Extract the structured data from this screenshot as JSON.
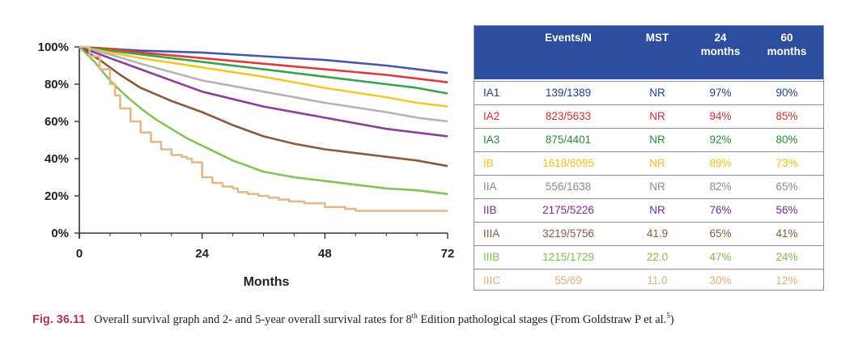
{
  "chart_data": {
    "type": "line",
    "xlabel": "Months",
    "ylabel": "",
    "xlim": [
      0,
      72
    ],
    "ylim": [
      0,
      100
    ],
    "x_ticks": [
      "0",
      "24",
      "48",
      "72"
    ],
    "y_ticks": [
      "0%",
      "20%",
      "40%",
      "60%",
      "80%",
      "100%"
    ],
    "grid": false,
    "series": [
      {
        "name": "IA1",
        "color": "#4a57a8",
        "step": false,
        "x": [
          0,
          6,
          12,
          24,
          36,
          48,
          60,
          66,
          72
        ],
        "y": [
          100,
          99,
          98,
          97,
          95,
          93,
          90,
          88,
          86
        ]
      },
      {
        "name": "IA2",
        "color": "#e03a3e",
        "step": false,
        "x": [
          0,
          6,
          12,
          24,
          36,
          48,
          60,
          66,
          72
        ],
        "y": [
          100,
          99,
          97,
          94,
          91,
          88,
          85,
          83,
          81
        ]
      },
      {
        "name": "IA3",
        "color": "#3aa34a",
        "step": false,
        "x": [
          0,
          6,
          12,
          24,
          36,
          48,
          60,
          66,
          72
        ],
        "y": [
          100,
          98,
          96,
          92,
          88,
          84,
          80,
          78,
          75
        ]
      },
      {
        "name": "IB",
        "color": "#f2c82f",
        "step": false,
        "x": [
          0,
          6,
          12,
          24,
          36,
          48,
          60,
          66,
          72
        ],
        "y": [
          100,
          97,
          94,
          89,
          84,
          78,
          73,
          70,
          68
        ]
      },
      {
        "name": "IIA",
        "color": "#b4b4b4",
        "step": false,
        "x": [
          0,
          6,
          12,
          24,
          36,
          48,
          60,
          66,
          72
        ],
        "y": [
          100,
          96,
          91,
          82,
          76,
          70,
          65,
          62,
          60
        ]
      },
      {
        "name": "IIB",
        "color": "#8a3fa0",
        "step": false,
        "x": [
          0,
          6,
          12,
          24,
          36,
          48,
          60,
          66,
          72
        ],
        "y": [
          100,
          94,
          88,
          76,
          68,
          62,
          56,
          54,
          52
        ]
      },
      {
        "name": "IIIA",
        "color": "#8b5a3c",
        "step": false,
        "x": [
          0,
          4,
          8,
          12,
          18,
          24,
          30,
          36,
          42,
          48,
          54,
          60,
          66,
          72
        ],
        "y": [
          100,
          93,
          85,
          78,
          71,
          65,
          58,
          52,
          48,
          45,
          43,
          41,
          39,
          36
        ]
      },
      {
        "name": "IIIB",
        "color": "#84c35a",
        "step": false,
        "x": [
          0,
          3,
          6,
          9,
          12,
          15,
          18,
          21,
          24,
          30,
          36,
          42,
          48,
          54,
          60,
          66,
          72
        ],
        "y": [
          100,
          92,
          82,
          74,
          67,
          61,
          56,
          51,
          47,
          39,
          33,
          30,
          28,
          26,
          24,
          23,
          21
        ]
      },
      {
        "name": "IIIC",
        "color": "#e2b98a",
        "step": true,
        "x": [
          0,
          2,
          4,
          6,
          7,
          8,
          10,
          12,
          14,
          16,
          18,
          20,
          21,
          22,
          24,
          26,
          28,
          30,
          31,
          33,
          35,
          37,
          39,
          41,
          44,
          48,
          52,
          54,
          60,
          72
        ],
        "y": [
          100,
          95,
          88,
          80,
          74,
          67,
          60,
          54,
          49,
          45,
          42,
          41,
          40,
          38,
          30,
          27,
          25,
          24,
          22,
          21,
          20,
          19,
          18,
          17,
          16,
          14,
          13,
          12,
          12,
          12
        ]
      }
    ]
  },
  "table": {
    "headers": [
      "Events/N",
      "MST",
      "24\nmonths",
      "60\nmonths"
    ],
    "rows": [
      {
        "stage": "IA1",
        "events": "139/1389",
        "mst": "NR",
        "m24": "97%",
        "m60": "90%",
        "color": "#1f3f8f"
      },
      {
        "stage": "IA2",
        "events": "823/5633",
        "mst": "NR",
        "m24": "94%",
        "m60": "85%",
        "color": "#d32f2f"
      },
      {
        "stage": "IA3",
        "events": "875/4401",
        "mst": "NR",
        "m24": "92%",
        "m60": "80%",
        "color": "#2e8b3a"
      },
      {
        "stage": "IB",
        "events": "1618/6095",
        "mst": "NR",
        "m24": "89%",
        "m60": "73%",
        "color": "#f0c020"
      },
      {
        "stage": "IIA",
        "events": "556/1638",
        "mst": "NR",
        "m24": "82%",
        "m60": "65%",
        "color": "#8c8c8c"
      },
      {
        "stage": "IIB",
        "events": "2175/5226",
        "mst": "NR",
        "m24": "76%",
        "m60": "56%",
        "color": "#7b2c93"
      },
      {
        "stage": "IIIA",
        "events": "3219/5756",
        "mst": "41.9",
        "m24": "65%",
        "m60": "41%",
        "color": "#8b5a3c"
      },
      {
        "stage": "IIIB",
        "events": "1215/1729",
        "mst": "22.0",
        "m24": "47%",
        "m60": "24%",
        "color": "#7cbf4e"
      },
      {
        "stage": "IIIC",
        "events": "55/69",
        "mst": "11.0",
        "m24": "30%",
        "m60": "12%",
        "color": "#e0b080"
      }
    ]
  },
  "caption": {
    "label": "Fig. 36.11",
    "text_before_sup": "Overall survival graph and 2- and 5-year overall survival rates for 8",
    "sup": "th",
    "text_after_sup": " Edition pathological stages (From Goldstraw P et al.",
    "sup2": "5",
    "text_end": ")"
  }
}
